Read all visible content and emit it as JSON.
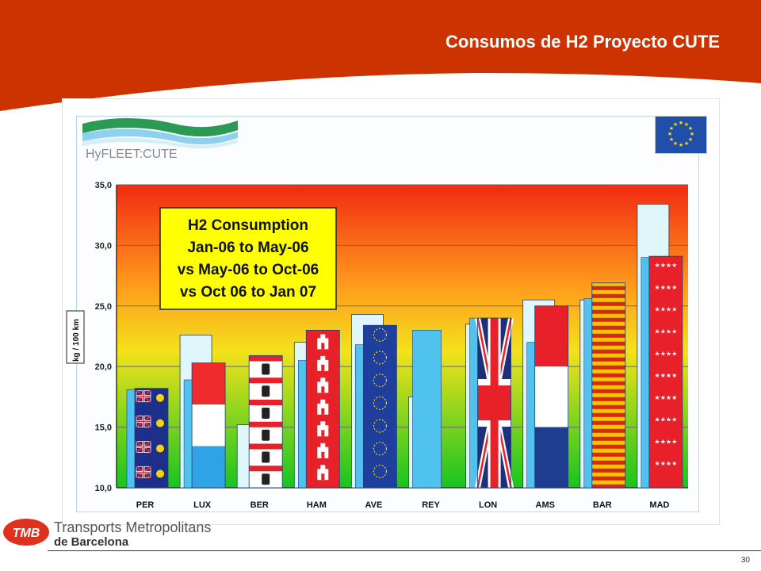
{
  "slide": {
    "title": "Consumos de H2 Proyecto CUTE",
    "page_number": "30"
  },
  "footer": {
    "company_line1": "Transports Metropolitans",
    "company_line2": "de Barcelona",
    "logo_text": "TMB"
  },
  "panel": {
    "logo_text": "HyFLEET:CUTE"
  },
  "colors": {
    "header": "#cc3300",
    "bar_light": "#dff6fb",
    "bar_mid": "#4fc2ee",
    "legend_box": "#ffff00"
  },
  "chart_data": {
    "type": "bar",
    "ylabel": "kg / 100 km",
    "ylim": [
      10,
      35
    ],
    "yticks": [
      "10,0",
      "15,0",
      "20,0",
      "25,0",
      "30,0",
      "35,0"
    ],
    "legend_box_lines": [
      "H2 Consumption",
      "Jan-06 to May-06",
      "vs May-06 to Oct-06",
      "vs Oct 06 to Jan 07"
    ],
    "categories": [
      "PER",
      "LUX",
      "BER",
      "HAM",
      "AVE",
      "REY",
      "LON",
      "AMS",
      "BAR",
      "MAD"
    ],
    "series": [
      {
        "name": "Jan-06 to May-06",
        "values": [
          null,
          22.6,
          15.2,
          22.0,
          24.3,
          17.5,
          23.5,
          25.5,
          25.5,
          33.4
        ]
      },
      {
        "name": "May-06 to Oct-06",
        "values": [
          18.1,
          18.9,
          null,
          20.5,
          21.8,
          23.0,
          24.0,
          22.0,
          25.6,
          29.0
        ]
      },
      {
        "name": "Oct 06 to Jan 07",
        "values": [
          18.2,
          20.3,
          20.9,
          23.0,
          23.4,
          null,
          24.0,
          25.0,
          26.9,
          29.1
        ]
      }
    ],
    "bar_flags": [
      "australia",
      "luxembourg",
      "berlin",
      "hamburg",
      "eu",
      "",
      "uk",
      "netherlands",
      "catalonia",
      "madrid"
    ]
  }
}
